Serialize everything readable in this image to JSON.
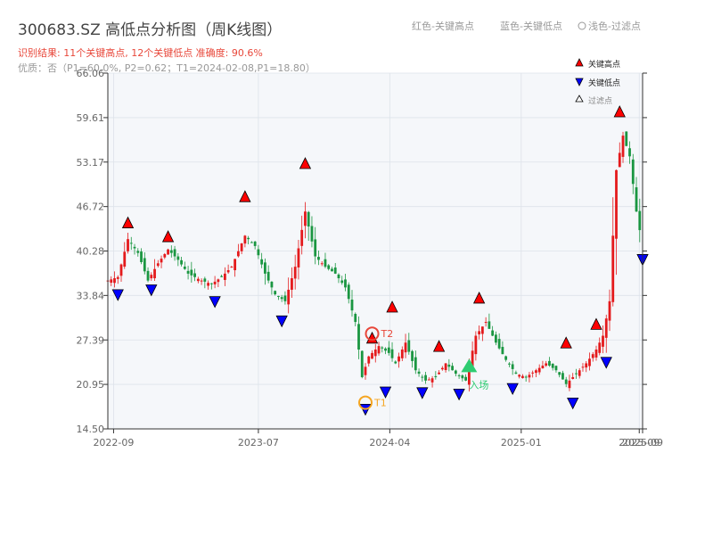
{
  "header": {
    "title": "300683.SZ 高低点分析图（周K线图）",
    "summary": "识别结果: 11个关键高点, 12个关键低点  准确度: 90.6%",
    "subline": "优质：否（P1=60.0%, P2=0.62；T1=2024-02-08,P1=18.80）",
    "top_legend": [
      "红色-关键高点",
      "蓝色-关键低点",
      "浅色-过滤点"
    ]
  },
  "colors": {
    "up": "#e41a1c",
    "down": "#1a9641",
    "high_marker": "#ff0000",
    "low_marker": "#0000ff",
    "t1": "#f5a623",
    "t2": "#e8473a",
    "entry": "#2ecc71",
    "plot_bg": "#f5f7fa",
    "grid": "#dde3ea"
  },
  "chart_data": {
    "type": "candlestick",
    "title": "300683.SZ 高低点分析图（周K线图）",
    "ylim": [
      14.5,
      66.06
    ],
    "yticks": [
      14.5,
      20.95,
      27.39,
      33.84,
      40.28,
      46.72,
      53.17,
      59.61,
      66.06
    ],
    "xlim": [
      "2022-08-20",
      "2025-09-12"
    ],
    "xticks": [
      {
        "date": "2022-09-01",
        "label": "2022-09"
      },
      {
        "date": "2023-07-01",
        "label": "2023-07"
      },
      {
        "date": "2024-04-01",
        "label": "2024-04"
      },
      {
        "date": "2025-01-01",
        "label": "2025-01"
      },
      {
        "date": "2025-09-05",
        "label": "2025-09"
      },
      {
        "date": "2025-09-12",
        "label": "2025-09"
      }
    ],
    "legend": [
      {
        "label": "关键高点",
        "kind": "high"
      },
      {
        "label": "关键低点",
        "kind": "low"
      },
      {
        "label": "过滤点",
        "kind": "filtered"
      }
    ],
    "anchors": [
      [
        "2022-08-20",
        36.0
      ],
      [
        "2022-09-10",
        36.5
      ],
      [
        "2022-10-01",
        42.0
      ],
      [
        "2022-10-22",
        40.0
      ],
      [
        "2022-11-12",
        36.0
      ],
      [
        "2022-12-03",
        38.5
      ],
      [
        "2022-12-24",
        40.5
      ],
      [
        "2023-01-14",
        39.0
      ],
      [
        "2023-02-04",
        37.0
      ],
      [
        "2023-03-04",
        36.0
      ],
      [
        "2023-03-25",
        35.5
      ],
      [
        "2023-04-15",
        36.5
      ],
      [
        "2023-05-06",
        38.0
      ],
      [
        "2023-06-03",
        42.5
      ],
      [
        "2023-06-24",
        41.0
      ],
      [
        "2023-07-15",
        37.0
      ],
      [
        "2023-08-05",
        34.0
      ],
      [
        "2023-08-26",
        33.0
      ],
      [
        "2023-09-16",
        38.0
      ],
      [
        "2023-10-07",
        46.0
      ],
      [
        "2023-10-28",
        39.5
      ],
      [
        "2023-11-18",
        38.0
      ],
      [
        "2023-12-09",
        37.0
      ],
      [
        "2023-12-30",
        35.0
      ],
      [
        "2024-01-20",
        30.0
      ],
      [
        "2024-02-03",
        22.0
      ],
      [
        "2024-02-17",
        25.0
      ],
      [
        "2024-03-09",
        26.5
      ],
      [
        "2024-03-30",
        25.5
      ],
      [
        "2024-04-13",
        24.0
      ],
      [
        "2024-05-04",
        27.0
      ],
      [
        "2024-05-25",
        23.0
      ],
      [
        "2024-06-15",
        21.5
      ],
      [
        "2024-07-06",
        22.0
      ],
      [
        "2024-07-27",
        24.0
      ],
      [
        "2024-08-17",
        22.5
      ],
      [
        "2024-09-07",
        21.5
      ],
      [
        "2024-09-28",
        28.0
      ],
      [
        "2024-10-19",
        30.0
      ],
      [
        "2024-11-09",
        27.0
      ],
      [
        "2024-11-30",
        24.5
      ],
      [
        "2024-12-21",
        22.5
      ],
      [
        "2025-01-11",
        22.0
      ],
      [
        "2025-02-01",
        23.0
      ],
      [
        "2025-02-22",
        24.0
      ],
      [
        "2025-03-15",
        23.0
      ],
      [
        "2025-04-05",
        21.0
      ],
      [
        "2025-04-26",
        22.5
      ],
      [
        "2025-05-17",
        24.0
      ],
      [
        "2025-06-07",
        26.0
      ],
      [
        "2025-06-21",
        28.0
      ],
      [
        "2025-07-05",
        33.0
      ],
      [
        "2025-07-19",
        52.0
      ],
      [
        "2025-08-02",
        57.0
      ],
      [
        "2025-08-16",
        54.0
      ],
      [
        "2025-08-30",
        46.0
      ],
      [
        "2025-09-12",
        41.0
      ]
    ],
    "key_highs": [
      {
        "date": "2022-10-01",
        "value": 43.5
      },
      {
        "date": "2022-12-24",
        "value": 41.5
      },
      {
        "date": "2023-06-03",
        "value": 47.3
      },
      {
        "date": "2023-10-07",
        "value": 52.1
      },
      {
        "date": "2024-02-24",
        "value": 26.8
      },
      {
        "date": "2024-04-06",
        "value": 31.3
      },
      {
        "date": "2024-07-13",
        "value": 25.6
      },
      {
        "date": "2024-10-05",
        "value": 32.6
      },
      {
        "date": "2025-04-05",
        "value": 26.1
      },
      {
        "date": "2025-06-07",
        "value": 28.8
      },
      {
        "date": "2025-07-26",
        "value": 59.6
      }
    ],
    "key_lows": [
      {
        "date": "2022-09-10",
        "value": 34.8
      },
      {
        "date": "2022-11-19",
        "value": 35.5
      },
      {
        "date": "2023-04-01",
        "value": 33.8
      },
      {
        "date": "2023-08-19",
        "value": 31.0
      },
      {
        "date": "2024-03-23",
        "value": 20.7
      },
      {
        "date": "2024-06-08",
        "value": 20.6
      },
      {
        "date": "2024-08-24",
        "value": 20.4
      },
      {
        "date": "2024-12-14",
        "value": 21.2
      },
      {
        "date": "2025-04-19",
        "value": 19.1
      },
      {
        "date": "2025-06-28",
        "value": 25.0
      },
      {
        "date": "2025-09-12",
        "value": 39.9
      },
      {
        "date": "2024-02-10",
        "value": 18.2
      }
    ],
    "signals": [
      {
        "label": "T1",
        "kind": "circle",
        "date": "2024-02-10",
        "value": 18.3
      },
      {
        "label": "T2",
        "kind": "circle",
        "date": "2024-02-24",
        "value": 28.3
      },
      {
        "label": "入场",
        "kind": "triangle",
        "date": "2024-09-14",
        "value": 23.5
      }
    ]
  }
}
